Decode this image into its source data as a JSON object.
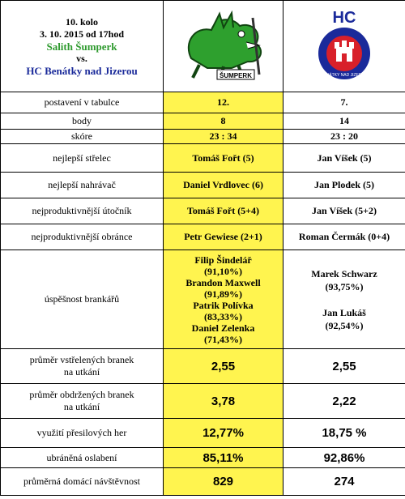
{
  "header": {
    "round": "10. kolo",
    "date": "3. 10. 2015 od 17hod",
    "home_team": "Salith Šumperk",
    "vs": "vs.",
    "away_team": "HC Benátky nad Jizerou",
    "home_logo_text": "ŠUMPERK",
    "away_logo_text": "HC",
    "away_logo_ring_text": "BENÁTKY NAD JIZEROU"
  },
  "rows": [
    {
      "label": "postavení v tabulce",
      "home": "12.",
      "away": "7."
    },
    {
      "label": "body",
      "home": "8",
      "away": "14"
    },
    {
      "label": "skóre",
      "home": "23 : 34",
      "away": "23 : 20"
    },
    {
      "label": "nejlepší střelec",
      "home": "Tomáš Fořt (5)",
      "away": "Jan Víšek (5)"
    },
    {
      "label": "nejlepší nahrávač",
      "home": "Daniel Vrdlovec (6)",
      "away": "Jan Plodek (5)"
    },
    {
      "label": "nejproduktivnější útočník",
      "home": "Tomáš Fořt (5+4)",
      "away": "Jan Víšek (5+2)"
    },
    {
      "label": "nejproduktivnější obránce",
      "home": "Petr Gewiese (2+1)",
      "away": "Roman Čermák (0+4)"
    }
  ],
  "goalies": {
    "label": "úspěšnost brankářů",
    "home": [
      "Filip Šindelář",
      "(91,10%)",
      "Brandon Maxwell",
      "(91,89%)",
      "Patrik Polívka",
      "(83,33%)",
      "Daniel Zelenka",
      "(71,43%)"
    ],
    "away": [
      "Marek Schwarz",
      "(93,75%)",
      "",
      "Jan Lukáš",
      "(92,54%)"
    ]
  },
  "stats": [
    {
      "label_1": "průměr vstřelených branek",
      "label_2": "na utkání",
      "home": "2,55",
      "away": "2,55"
    },
    {
      "label_1": "průměr obdržených branek",
      "label_2": "na utkání",
      "home": "3,78",
      "away": "2,22"
    },
    {
      "label_1": "využití přesilových her",
      "label_2": "",
      "home": "12,77%",
      "away": "18,75 %"
    },
    {
      "label_1": "ubráněná oslabení",
      "label_2": "",
      "home": "85,11%",
      "away": "92,86%"
    },
    {
      "label_1": "průměrná domácí návštěvnost",
      "label_2": "",
      "home": "829",
      "away": "274"
    }
  ],
  "colors": {
    "highlight": "#fff44f",
    "home_green": "#2e9a2e",
    "away_blue": "#1a2a9a",
    "away_red": "#d8202a"
  }
}
